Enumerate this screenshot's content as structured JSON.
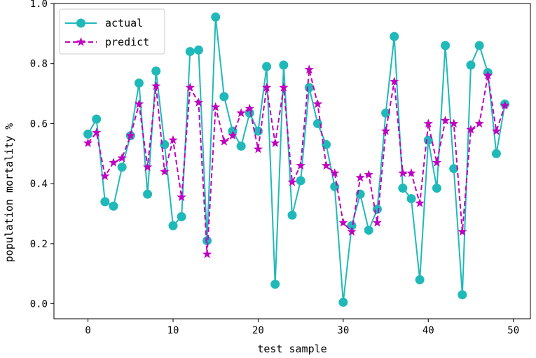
{
  "chart_data": {
    "type": "line",
    "xlabel": "test sample",
    "ylabel": "population mortality %",
    "xlim": [
      -4,
      52
    ],
    "ylim": [
      -0.05,
      1.0
    ],
    "xticks": [
      0,
      10,
      20,
      30,
      40,
      50
    ],
    "xtick_labels": [
      "0",
      "10",
      "20",
      "30",
      "40",
      "50"
    ],
    "yticks": [
      0.0,
      0.2,
      0.4,
      0.6,
      0.8,
      1.0
    ],
    "ytick_labels": [
      "0.0",
      "0.2",
      "0.4",
      "0.6",
      "0.8",
      "1.0"
    ],
    "grid": false,
    "legend_position": "upper-left",
    "x": [
      0,
      1,
      2,
      3,
      4,
      5,
      6,
      7,
      8,
      9,
      10,
      11,
      12,
      13,
      14,
      15,
      16,
      17,
      18,
      19,
      20,
      21,
      22,
      23,
      24,
      25,
      26,
      27,
      28,
      29,
      30,
      31,
      32,
      33,
      34,
      35,
      36,
      37,
      38,
      39,
      40,
      41,
      42,
      43,
      44,
      45,
      46,
      47,
      48,
      49
    ],
    "series": [
      {
        "name": "actual",
        "color": "#20b9b9",
        "line_style": "solid",
        "marker": "circle",
        "values": [
          0.565,
          0.615,
          0.34,
          0.325,
          0.455,
          0.56,
          0.735,
          0.365,
          0.775,
          0.53,
          0.26,
          0.29,
          0.84,
          0.845,
          0.21,
          0.955,
          0.69,
          0.575,
          0.525,
          0.635,
          0.575,
          0.79,
          0.065,
          0.795,
          0.295,
          0.41,
          0.72,
          0.6,
          0.53,
          0.39,
          0.005,
          0.26,
          0.365,
          0.245,
          0.315,
          0.635,
          0.89,
          0.385,
          0.35,
          0.08,
          0.545,
          0.385,
          0.86,
          0.45,
          0.03,
          0.795,
          0.86,
          0.77,
          0.5,
          0.665
        ]
      },
      {
        "name": "predict",
        "color": "#c000c0",
        "line_style": "dashed",
        "marker": "star",
        "values": [
          0.535,
          0.57,
          0.425,
          0.47,
          0.485,
          0.56,
          0.665,
          0.455,
          0.725,
          0.44,
          0.545,
          0.355,
          0.72,
          0.67,
          0.165,
          0.655,
          0.54,
          0.56,
          0.635,
          0.65,
          0.515,
          0.72,
          0.535,
          0.72,
          0.405,
          0.46,
          0.78,
          0.665,
          0.46,
          0.435,
          0.27,
          0.24,
          0.42,
          0.43,
          0.27,
          0.575,
          0.74,
          0.435,
          0.435,
          0.335,
          0.6,
          0.47,
          0.61,
          0.6,
          0.24,
          0.58,
          0.6,
          0.76,
          0.575,
          0.66
        ]
      }
    ]
  }
}
